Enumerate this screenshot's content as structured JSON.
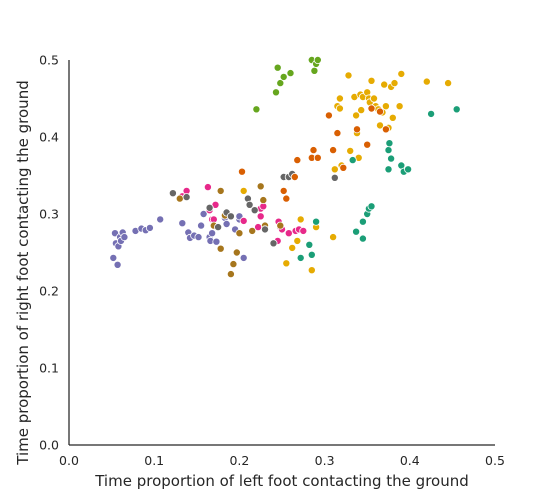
{
  "chart_data": {
    "type": "scatter",
    "xlabel": "Time proportion of left foot contacting the ground",
    "ylabel": "Time proportion of right foot contacting the ground",
    "xlim": [
      0.0,
      0.5
    ],
    "ylim": [
      0.0,
      0.5
    ],
    "xticks": [
      "0.0",
      "0.1",
      "0.2",
      "0.3",
      "0.4",
      "0.5"
    ],
    "yticks": [
      "0.0",
      "0.1",
      "0.2",
      "0.3",
      "0.4",
      "0.5"
    ],
    "grid": false,
    "legend": "none",
    "series": [
      {
        "color": "#7570b3",
        "points": [
          [
            0.052,
            0.243
          ],
          [
            0.054,
            0.275
          ],
          [
            0.055,
            0.262
          ],
          [
            0.057,
            0.234
          ],
          [
            0.058,
            0.258
          ],
          [
            0.06,
            0.27
          ],
          [
            0.061,
            0.265
          ],
          [
            0.063,
            0.276
          ],
          [
            0.065,
            0.27
          ],
          [
            0.078,
            0.278
          ],
          [
            0.085,
            0.281
          ],
          [
            0.09,
            0.279
          ],
          [
            0.095,
            0.282
          ],
          [
            0.107,
            0.293
          ],
          [
            0.133,
            0.288
          ],
          [
            0.14,
            0.276
          ],
          [
            0.142,
            0.269
          ],
          [
            0.147,
            0.272
          ],
          [
            0.152,
            0.27
          ],
          [
            0.155,
            0.285
          ],
          [
            0.158,
            0.3
          ],
          [
            0.165,
            0.27
          ],
          [
            0.166,
            0.265
          ],
          [
            0.168,
            0.275
          ],
          [
            0.173,
            0.264
          ],
          [
            0.183,
            0.295
          ],
          [
            0.185,
            0.287
          ],
          [
            0.195,
            0.28
          ],
          [
            0.2,
            0.293
          ],
          [
            0.2,
            0.297
          ],
          [
            0.205,
            0.243
          ]
        ]
      },
      {
        "color": "#e7298a",
        "points": [
          [
            0.133,
            0.323
          ],
          [
            0.138,
            0.33
          ],
          [
            0.163,
            0.335
          ],
          [
            0.165,
            0.305
          ],
          [
            0.168,
            0.293
          ],
          [
            0.17,
            0.293
          ],
          [
            0.172,
            0.312
          ],
          [
            0.205,
            0.291
          ],
          [
            0.222,
            0.283
          ],
          [
            0.225,
            0.297
          ],
          [
            0.225,
            0.307
          ],
          [
            0.228,
            0.31
          ],
          [
            0.245,
            0.265
          ],
          [
            0.246,
            0.29
          ],
          [
            0.248,
            0.283
          ],
          [
            0.25,
            0.28
          ],
          [
            0.258,
            0.275
          ],
          [
            0.266,
            0.278
          ],
          [
            0.27,
            0.28
          ],
          [
            0.275,
            0.278
          ]
        ]
      },
      {
        "color": "#a6761d",
        "points": [
          [
            0.13,
            0.32
          ],
          [
            0.17,
            0.285
          ],
          [
            0.178,
            0.255
          ],
          [
            0.178,
            0.33
          ],
          [
            0.183,
            0.298
          ],
          [
            0.19,
            0.222
          ],
          [
            0.193,
            0.235
          ],
          [
            0.197,
            0.25
          ],
          [
            0.2,
            0.275
          ],
          [
            0.215,
            0.278
          ],
          [
            0.225,
            0.336
          ],
          [
            0.228,
            0.318
          ],
          [
            0.23,
            0.285
          ],
          [
            0.248,
            0.285
          ]
        ]
      },
      {
        "color": "#666666",
        "points": [
          [
            0.122,
            0.327
          ],
          [
            0.138,
            0.322
          ],
          [
            0.165,
            0.308
          ],
          [
            0.175,
            0.283
          ],
          [
            0.185,
            0.302
          ],
          [
            0.19,
            0.297
          ],
          [
            0.21,
            0.32
          ],
          [
            0.212,
            0.312
          ],
          [
            0.218,
            0.305
          ],
          [
            0.23,
            0.28
          ],
          [
            0.24,
            0.262
          ],
          [
            0.252,
            0.348
          ],
          [
            0.258,
            0.348
          ],
          [
            0.262,
            0.352
          ],
          [
            0.312,
            0.347
          ]
        ]
      },
      {
        "color": "#e6ab02",
        "points": [
          [
            0.205,
            0.33
          ],
          [
            0.255,
            0.236
          ],
          [
            0.262,
            0.256
          ],
          [
            0.268,
            0.265
          ],
          [
            0.272,
            0.293
          ],
          [
            0.285,
            0.227
          ],
          [
            0.29,
            0.283
          ],
          [
            0.31,
            0.27
          ],
          [
            0.312,
            0.358
          ],
          [
            0.315,
            0.44
          ],
          [
            0.318,
            0.45
          ],
          [
            0.318,
            0.437
          ],
          [
            0.32,
            0.363
          ],
          [
            0.328,
            0.48
          ],
          [
            0.33,
            0.382
          ],
          [
            0.335,
            0.452
          ],
          [
            0.337,
            0.428
          ],
          [
            0.338,
            0.405
          ],
          [
            0.34,
            0.373
          ],
          [
            0.342,
            0.455
          ],
          [
            0.343,
            0.435
          ],
          [
            0.345,
            0.452
          ],
          [
            0.35,
            0.458
          ],
          [
            0.352,
            0.45
          ],
          [
            0.353,
            0.445
          ],
          [
            0.355,
            0.473
          ],
          [
            0.358,
            0.45
          ],
          [
            0.36,
            0.44
          ],
          [
            0.363,
            0.436
          ],
          [
            0.365,
            0.415
          ],
          [
            0.368,
            0.432
          ],
          [
            0.37,
            0.468
          ],
          [
            0.372,
            0.44
          ],
          [
            0.375,
            0.412
          ],
          [
            0.378,
            0.465
          ],
          [
            0.38,
            0.425
          ],
          [
            0.382,
            0.47
          ],
          [
            0.388,
            0.44
          ],
          [
            0.39,
            0.482
          ],
          [
            0.42,
            0.472
          ],
          [
            0.445,
            0.47
          ]
        ]
      },
      {
        "color": "#d95f02",
        "points": [
          [
            0.203,
            0.355
          ],
          [
            0.252,
            0.33
          ],
          [
            0.255,
            0.32
          ],
          [
            0.265,
            0.348
          ],
          [
            0.268,
            0.37
          ],
          [
            0.285,
            0.373
          ],
          [
            0.287,
            0.383
          ],
          [
            0.292,
            0.373
          ],
          [
            0.305,
            0.428
          ],
          [
            0.31,
            0.383
          ],
          [
            0.315,
            0.405
          ],
          [
            0.322,
            0.36
          ],
          [
            0.338,
            0.41
          ],
          [
            0.35,
            0.39
          ],
          [
            0.355,
            0.437
          ],
          [
            0.365,
            0.433
          ],
          [
            0.372,
            0.41
          ]
        ]
      },
      {
        "color": "#1b9e77",
        "points": [
          [
            0.272,
            0.243
          ],
          [
            0.282,
            0.26
          ],
          [
            0.285,
            0.247
          ],
          [
            0.29,
            0.29
          ],
          [
            0.333,
            0.37
          ],
          [
            0.337,
            0.277
          ],
          [
            0.345,
            0.29
          ],
          [
            0.345,
            0.268
          ],
          [
            0.35,
            0.3
          ],
          [
            0.352,
            0.307
          ],
          [
            0.355,
            0.31
          ],
          [
            0.375,
            0.358
          ],
          [
            0.375,
            0.383
          ],
          [
            0.376,
            0.392
          ],
          [
            0.378,
            0.372
          ],
          [
            0.39,
            0.363
          ],
          [
            0.393,
            0.355
          ],
          [
            0.398,
            0.358
          ],
          [
            0.425,
            0.43
          ],
          [
            0.455,
            0.436
          ]
        ]
      },
      {
        "color": "#66a61e",
        "points": [
          [
            0.22,
            0.436
          ],
          [
            0.243,
            0.458
          ],
          [
            0.245,
            0.49
          ],
          [
            0.248,
            0.47
          ],
          [
            0.252,
            0.478
          ],
          [
            0.26,
            0.483
          ],
          [
            0.285,
            0.5
          ],
          [
            0.288,
            0.486
          ],
          [
            0.29,
            0.495
          ],
          [
            0.292,
            0.5
          ]
        ]
      }
    ]
  }
}
